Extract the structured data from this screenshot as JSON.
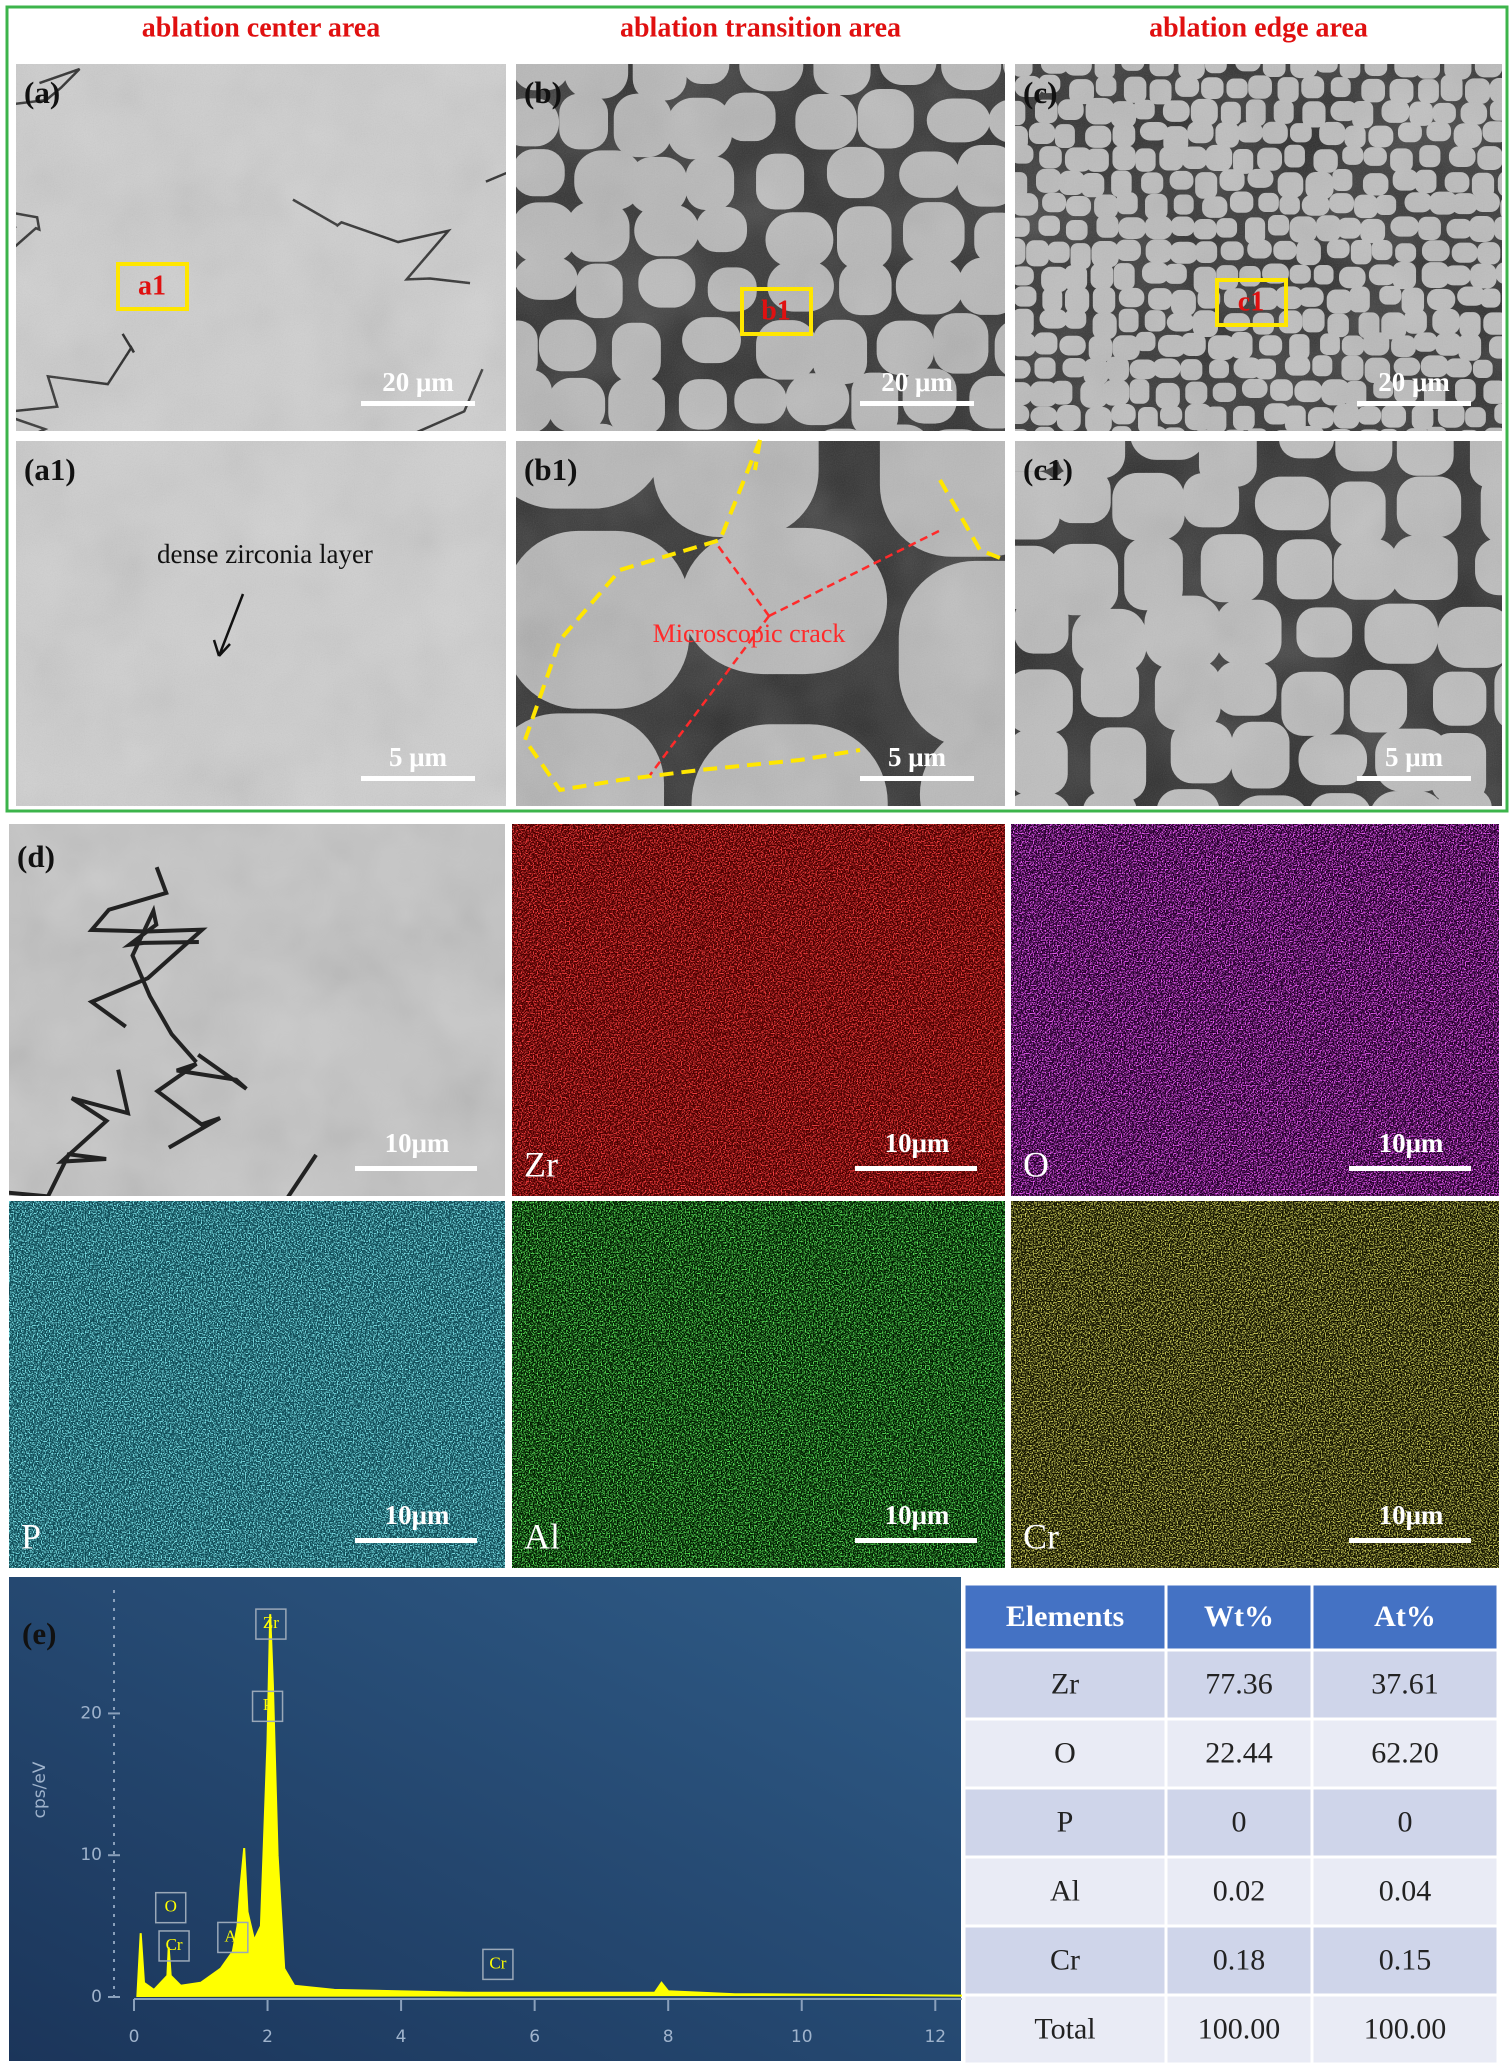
{
  "headers": [
    "ablation center area",
    "ablation transition area",
    "ablation edge area"
  ],
  "panels": [
    {
      "label": "(a)",
      "scale": "20 μm",
      "box": "a1"
    },
    {
      "label": "(b)",
      "scale": "20 μm",
      "box": "b1"
    },
    {
      "label": "(c)",
      "scale": "20 μm",
      "box": "c1"
    },
    {
      "label": "(a1)",
      "scale": "5 μm",
      "annotation": "dense zirconia layer"
    },
    {
      "label": "(b1)",
      "scale": "5 μm",
      "annotation": "Microscopic crack"
    },
    {
      "label": "(c1)",
      "scale": "5 μm"
    }
  ],
  "maps": [
    {
      "label": "(d)",
      "scale": "10μm"
    },
    {
      "element": "Zr",
      "scale": "10μm"
    },
    {
      "element": "O",
      "scale": "10μm"
    },
    {
      "element": "P",
      "scale": "10μm"
    },
    {
      "element": "Al",
      "scale": "10μm"
    },
    {
      "element": "Cr",
      "scale": "10μm"
    }
  ],
  "spectrum": {
    "label": "(e)",
    "y_label": "cps/eV",
    "color": "#ffff00",
    "x": [
      0.05,
      0.1,
      0.15,
      0.3,
      0.5,
      0.52,
      0.55,
      0.7,
      1.0,
      1.3,
      1.48,
      1.55,
      1.6,
      1.65,
      1.7,
      1.8,
      1.9,
      2.0,
      2.04,
      2.08,
      2.15,
      2.25,
      2.4,
      3.0,
      5.0,
      7.8,
      7.9,
      8.0,
      9.0,
      9.4,
      12.4
    ],
    "values": [
      0,
      4.5,
      1,
      0.5,
      1.5,
      3.5,
      1.5,
      0.8,
      1,
      2,
      3.2,
      5,
      8,
      10.5,
      6,
      4,
      5,
      18,
      27,
      22,
      10,
      2,
      0.8,
      0.5,
      0.3,
      0.3,
      1,
      0.4,
      0.2,
      0.2,
      0.1
    ],
    "xlim": [
      0,
      12.4
    ],
    "ylim": [
      0,
      28
    ],
    "xticks": [
      0,
      2,
      4,
      6,
      8,
      10,
      12
    ],
    "yticks": [
      0,
      10,
      20
    ],
    "peak_labels": [
      "Zr",
      "P",
      "O",
      "Cr",
      "Al",
      "Cr"
    ]
  },
  "table": {
    "columns": [
      "Elements",
      "Wt%",
      "At%"
    ],
    "rows": [
      [
        "Zr",
        "77.36",
        "37.61"
      ],
      [
        "O",
        "22.44",
        "62.20"
      ],
      [
        "P",
        "0",
        "0"
      ],
      [
        "Al",
        "0.02",
        "0.04"
      ],
      [
        "Cr",
        "0.18",
        "0.15"
      ],
      [
        "Total",
        "100.00",
        "100.00"
      ]
    ]
  }
}
